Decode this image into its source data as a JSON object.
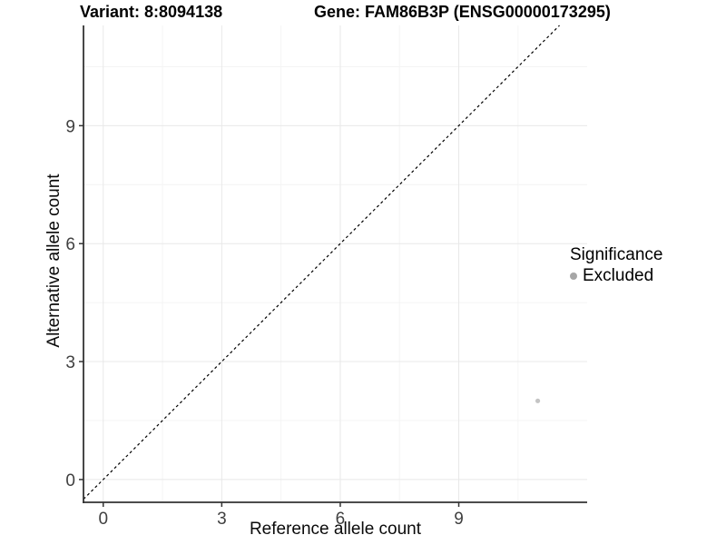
{
  "titles": {
    "variant": "Variant: 8:8094138",
    "gene": "Gene: FAM86B3P (ENSG00000173295)"
  },
  "axes": {
    "x_label": "Reference allele count",
    "y_label": "Alternative allele count"
  },
  "legend": {
    "title": "Significance",
    "items": [
      {
        "label": "Excluded",
        "dot_color": "#a6a6a6"
      }
    ]
  },
  "colors": {
    "background": "#ffffff",
    "axis_line": "#333333",
    "tick_label": "#404040",
    "grid_major": "#e8e8e8",
    "grid_minor": "#f4f4f4",
    "identity_line": "#000000",
    "point": "#c4c4c4"
  },
  "chart_data": {
    "type": "scatter",
    "title": "Variant: 8:8094138  /  Gene: FAM86B3P (ENSG00000173295)",
    "xlabel": "Reference allele count",
    "ylabel": "Alternative allele count",
    "xlim": [
      -0.5,
      12.25
    ],
    "ylim": [
      -0.58,
      11.55
    ],
    "x_ticks": [
      0,
      3,
      6,
      9
    ],
    "y_ticks": [
      0,
      3,
      6,
      9
    ],
    "x_minor_ticks": [
      1.5,
      4.5,
      7.5,
      10.5
    ],
    "y_minor_ticks": [
      1.5,
      4.5,
      7.5,
      10.5
    ],
    "grid": true,
    "legend_position": "right",
    "legend_title": "Significance",
    "series": [
      {
        "name": "Excluded",
        "color": "#c4c4c4",
        "point_radius": 2.6,
        "points": [
          {
            "x": 11,
            "y": 2
          }
        ]
      }
    ],
    "reference_line": {
      "kind": "identity",
      "equation": "y = x",
      "style": "dashed",
      "color": "#000000"
    }
  }
}
